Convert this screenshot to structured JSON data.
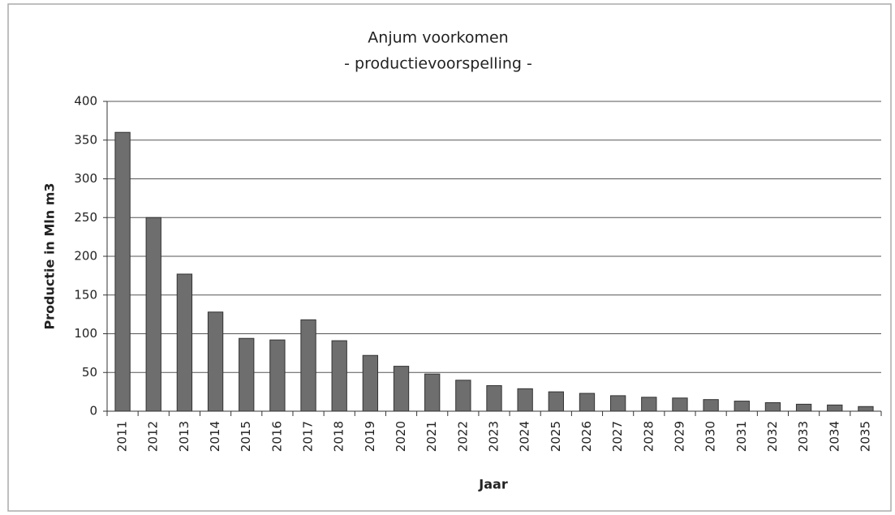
{
  "chart_data": {
    "type": "bar",
    "title": "Anjum voorkomen",
    "subtitle": "- productievoorspelling -",
    "y_label": "Productie in Mln m3",
    "x_label": "Jaar",
    "categories": [
      "2011",
      "2012",
      "2013",
      "2014",
      "2015",
      "2016",
      "2017",
      "2018",
      "2019",
      "2020",
      "2021",
      "2022",
      "2023",
      "2024",
      "2025",
      "2026",
      "2027",
      "2028",
      "2029",
      "2030",
      "2031",
      "2032",
      "2033",
      "2034",
      "2035"
    ],
    "values": [
      360,
      250,
      177,
      128,
      94,
      92,
      118,
      91,
      72,
      58,
      48,
      40,
      33,
      29,
      25,
      23,
      20,
      18,
      17,
      15,
      13,
      11,
      9,
      8,
      6
    ],
    "color": "#6e6e6e",
    "ylim": [
      0,
      400
    ],
    "yticks": [
      0,
      50,
      100,
      150,
      200,
      250,
      300,
      350,
      400
    ],
    "grid": true
  }
}
